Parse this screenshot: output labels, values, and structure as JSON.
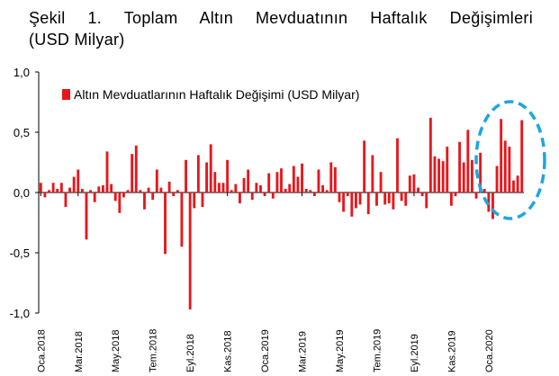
{
  "title": {
    "line1": "Şekil 1. Toplam Altın Mevduatının Haftalık Değişimleri",
    "line2": "(USD Milyar)"
  },
  "colors": {
    "bar": "#e8161b",
    "axis": "#000000",
    "highlight": "#1ea6e0"
  },
  "chart_data": {
    "type": "bar",
    "title": "Şekil 1. Toplam Altın Mevduatının Haftalık Değişimleri (USD Milyar)",
    "legend": {
      "label": "Altın Mevduatlarının Haftalık Değişimi (USD Milyar)",
      "position": "top-left"
    },
    "ylim": [
      -1.0,
      1.0
    ],
    "yticks": [
      "1,0",
      "0,5",
      "0,0",
      "-0,5",
      "-1,0"
    ],
    "ytick_values": [
      1.0,
      0.5,
      0.0,
      -0.5,
      -1.0
    ],
    "xtick_labels": [
      "Oca.2018",
      "Mar.2018",
      "May.2018",
      "Tem.2018",
      "Eyl.2018",
      "Kas.2018",
      "Oca.2019",
      "Mar.2019",
      "May.2019",
      "Tem.2019",
      "Eyl.2019",
      "Kas.2019",
      "Oca.2020"
    ],
    "xtick_positions": [
      0,
      9,
      18,
      27,
      36,
      45,
      54,
      63,
      72,
      81,
      90,
      99,
      108
    ],
    "highlight": "dashed ellipse around latest weeks",
    "values": [
      0.08,
      -0.04,
      0.02,
      0.08,
      0.03,
      0.08,
      -0.12,
      0.04,
      0.13,
      0.19,
      0.03,
      -0.39,
      0.02,
      -0.08,
      0.05,
      0.06,
      0.34,
      0.07,
      -0.07,
      -0.17,
      -0.04,
      0.02,
      0.32,
      0.39,
      0.02,
      -0.14,
      0.04,
      -0.06,
      0.19,
      0.04,
      -0.51,
      0.09,
      -0.03,
      0.02,
      -0.45,
      0.27,
      -0.97,
      -0.13,
      0.31,
      -0.12,
      0.25,
      0.4,
      0.17,
      0.08,
      0.08,
      0.27,
      0.02,
      0.07,
      -0.09,
      0.12,
      0.19,
      -0.06,
      0.08,
      0.06,
      -0.03,
      0.16,
      -0.05,
      0.17,
      0.2,
      0.03,
      0.07,
      0.22,
      0.13,
      0.24,
      0.03,
      0.02,
      -0.03,
      0.19,
      0.06,
      0.02,
      0.25,
      0.21,
      -0.08,
      -0.16,
      -0.03,
      -0.2,
      -0.13,
      -0.1,
      0.43,
      -0.18,
      0.31,
      -0.11,
      0.17,
      -0.1,
      -0.09,
      -0.14,
      0.45,
      -0.07,
      -0.11,
      0.14,
      0.15,
      0.04,
      -0.03,
      -0.13,
      0.62,
      0.3,
      0.28,
      0.26,
      0.38,
      -0.11,
      -0.03,
      0.42,
      0.25,
      0.52,
      0.27,
      -0.05,
      0.33,
      0.03,
      -0.16,
      -0.22,
      0.22,
      0.61,
      0.43,
      0.38,
      0.1,
      0.14,
      0.6
    ]
  }
}
